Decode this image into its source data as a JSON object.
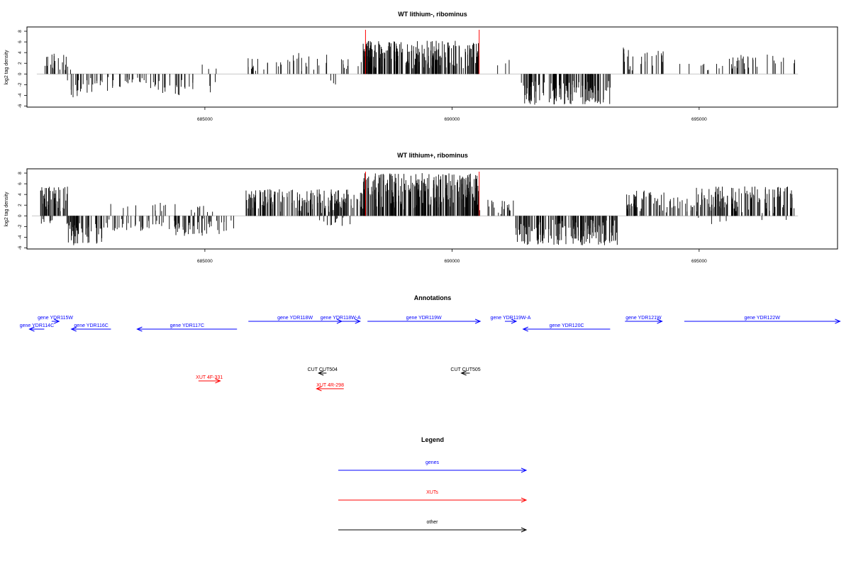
{
  "colors": {
    "gene": "#0000ff",
    "xut": "#ff0000",
    "other": "#000000",
    "highlight": "#ff0000",
    "baseline": "#c0c0c0"
  },
  "chart_data": [
    {
      "type": "bar",
      "title": "WT lithium-, ribominus",
      "xlabel": "",
      "ylabel": "log2 tag density",
      "xlim": [
        681400,
        697800
      ],
      "ylim": [
        -6.2,
        8.8
      ],
      "xticks": [
        685000,
        690000,
        695000
      ],
      "xtick_labels": [
        "685000",
        "690000",
        "695000"
      ],
      "yticks": [
        8,
        6,
        4,
        2,
        0,
        -2,
        -4,
        -6
      ],
      "ytick_labels": [
        "8",
        "6",
        "4",
        "2",
        "0",
        "-2",
        "-4",
        "-6"
      ],
      "highlight_x": [
        688250,
        690550
      ],
      "segments": [
        {
          "start": 681750,
          "end": 682300,
          "sign": 1,
          "min": 0.5,
          "max": 4.0,
          "density": 0.55,
          "seed": 11
        },
        {
          "start": 682200,
          "end": 682750,
          "sign": -1,
          "min": 0.5,
          "max": 4.5,
          "density": 0.5,
          "seed": 12
        },
        {
          "start": 682750,
          "end": 683300,
          "sign": -1,
          "min": 0.5,
          "max": 3.5,
          "density": 0.35,
          "seed": 13
        },
        {
          "start": 683300,
          "end": 683900,
          "sign": -1,
          "min": 0.5,
          "max": 2.5,
          "density": 0.3,
          "seed": 14
        },
        {
          "start": 683900,
          "end": 684550,
          "sign": -1,
          "min": 0.5,
          "max": 4.0,
          "density": 0.45,
          "seed": 15
        },
        {
          "start": 684550,
          "end": 685400,
          "sign": -1,
          "min": 0.5,
          "max": 3.5,
          "density": 0.15,
          "seed": 16
        },
        {
          "start": 684800,
          "end": 685400,
          "sign": 1,
          "min": 0.3,
          "max": 2.0,
          "density": 0.06,
          "seed": 17
        },
        {
          "start": 685850,
          "end": 686750,
          "sign": 1,
          "min": 0.5,
          "max": 3.0,
          "density": 0.3,
          "seed": 18
        },
        {
          "start": 686750,
          "end": 687600,
          "sign": 1,
          "min": 0.5,
          "max": 4.0,
          "density": 0.25,
          "seed": 19
        },
        {
          "start": 687500,
          "end": 687700,
          "sign": -1,
          "min": 1.0,
          "max": 2.5,
          "density": 0.2,
          "seed": 20
        },
        {
          "start": 687700,
          "end": 688200,
          "sign": 1,
          "min": 0.5,
          "max": 3.0,
          "density": 0.25,
          "seed": 21
        },
        {
          "start": 688200,
          "end": 690550,
          "sign": 1,
          "min": 1.0,
          "max": 6.2,
          "density": 1.3,
          "seed": 22
        },
        {
          "start": 690800,
          "end": 691300,
          "sign": 1,
          "min": 0.5,
          "max": 3.0,
          "density": 0.08,
          "seed": 23
        },
        {
          "start": 691400,
          "end": 693200,
          "sign": -1,
          "min": 1.0,
          "max": 5.8,
          "density": 1.0,
          "seed": 24
        },
        {
          "start": 693450,
          "end": 694300,
          "sign": 1,
          "min": 0.5,
          "max": 5.0,
          "density": 0.4,
          "seed": 25
        },
        {
          "start": 694600,
          "end": 695400,
          "sign": 1,
          "min": 0.5,
          "max": 2.5,
          "density": 0.15,
          "seed": 26
        },
        {
          "start": 695400,
          "end": 696950,
          "sign": 1,
          "min": 0.5,
          "max": 3.8,
          "density": 0.3,
          "seed": 27
        }
      ]
    },
    {
      "type": "bar",
      "title": "WT lithium+, ribominus",
      "xlabel": "",
      "ylabel": "log2 tag density",
      "xlim": [
        681400,
        697800
      ],
      "ylim": [
        -6.2,
        8.8
      ],
      "xticks": [
        685000,
        690000,
        695000
      ],
      "xtick_labels": [
        "685000",
        "690000",
        "695000"
      ],
      "yticks": [
        8,
        6,
        4,
        2,
        0,
        -2,
        -4,
        -6
      ],
      "ytick_labels": [
        "8",
        "6",
        "4",
        "2",
        "0",
        "-2",
        "-4",
        "-6"
      ],
      "highlight_x": [
        688250,
        690550
      ],
      "segments": [
        {
          "start": 681650,
          "end": 682250,
          "sign": 1,
          "min": 0.5,
          "max": 5.5,
          "density": 1.0,
          "seed": 31
        },
        {
          "start": 681650,
          "end": 681950,
          "sign": -1,
          "min": 0.3,
          "max": 1.5,
          "density": 0.4,
          "seed": 32
        },
        {
          "start": 682200,
          "end": 683000,
          "sign": -1,
          "min": 0.5,
          "max": 5.5,
          "density": 0.9,
          "seed": 33
        },
        {
          "start": 683000,
          "end": 684400,
          "sign": -1,
          "min": 0.5,
          "max": 2.8,
          "density": 0.4,
          "seed": 34
        },
        {
          "start": 683000,
          "end": 684400,
          "sign": 1,
          "min": 0.3,
          "max": 2.5,
          "density": 0.12,
          "seed": 35
        },
        {
          "start": 684400,
          "end": 685600,
          "sign": -1,
          "min": 0.5,
          "max": 3.8,
          "density": 0.55,
          "seed": 36
        },
        {
          "start": 684700,
          "end": 685300,
          "sign": 1,
          "min": 0.5,
          "max": 2.2,
          "density": 0.2,
          "seed": 37
        },
        {
          "start": 685800,
          "end": 688200,
          "sign": 1,
          "min": 0.5,
          "max": 5.0,
          "density": 1.0,
          "seed": 38
        },
        {
          "start": 687300,
          "end": 688000,
          "sign": -1,
          "min": 0.3,
          "max": 2.0,
          "density": 0.25,
          "seed": 39
        },
        {
          "start": 688200,
          "end": 690550,
          "sign": 1,
          "min": 1.0,
          "max": 8.0,
          "density": 1.5,
          "seed": 40
        },
        {
          "start": 690550,
          "end": 691250,
          "sign": 1,
          "min": 0.3,
          "max": 3.0,
          "density": 0.4,
          "seed": 41
        },
        {
          "start": 691250,
          "end": 693350,
          "sign": -1,
          "min": 0.5,
          "max": 5.5,
          "density": 1.1,
          "seed": 42
        },
        {
          "start": 693500,
          "end": 694300,
          "sign": 1,
          "min": 0.5,
          "max": 4.8,
          "density": 0.8,
          "seed": 43
        },
        {
          "start": 694300,
          "end": 694900,
          "sign": 1,
          "min": 0.5,
          "max": 3.5,
          "density": 0.45,
          "seed": 44
        },
        {
          "start": 694900,
          "end": 696950,
          "sign": 1,
          "min": 0.5,
          "max": 5.5,
          "density": 0.9,
          "seed": 45
        },
        {
          "start": 694900,
          "end": 696950,
          "sign": -1,
          "min": 0.3,
          "max": 1.8,
          "density": 0.04,
          "seed": 46
        }
      ]
    }
  ],
  "annotations": {
    "title": "Annotations",
    "genes": [
      {
        "label": "gene YDR115W",
        "start": 681900,
        "end": 682050,
        "strand": "+",
        "row": 0
      },
      {
        "label": "gene YDR114C",
        "start": 681450,
        "end": 681750,
        "strand": "-",
        "row": 1
      },
      {
        "label": "gene YDR116C",
        "start": 682300,
        "end": 683100,
        "strand": "-",
        "row": 1
      },
      {
        "label": "gene YDR117C",
        "start": 683630,
        "end": 685650,
        "strand": "-",
        "row": 1
      },
      {
        "label": "gene YDR118W",
        "start": 685880,
        "end": 687770,
        "strand": "+",
        "row": 0
      },
      {
        "label": "gene YDR118W-A",
        "start": 687350,
        "end": 688140,
        "strand": "+",
        "row": 0
      },
      {
        "label": "gene YDR119W",
        "start": 688290,
        "end": 690570,
        "strand": "+",
        "row": 0
      },
      {
        "label": "gene YDR119W-A",
        "start": 691070,
        "end": 691300,
        "strand": "+",
        "row": 0
      },
      {
        "label": "gene YDR120C",
        "start": 691440,
        "end": 693200,
        "strand": "-",
        "row": 1
      },
      {
        "label": "gene YDR121W",
        "start": 693500,
        "end": 694250,
        "strand": "+",
        "row": 0
      },
      {
        "label": "gene YDR122W",
        "start": 694700,
        "end": 697850,
        "strand": "+",
        "row": 0
      }
    ],
    "cuts": [
      {
        "label": "CUT CUT504",
        "start": 687300,
        "end": 687460,
        "strand": "-",
        "row": 0
      },
      {
        "label": "CUT CUT505",
        "start": 690190,
        "end": 690360,
        "strand": "-",
        "row": 0
      }
    ],
    "xuts": [
      {
        "label": "XUT 4F-331",
        "start": 684870,
        "end": 685310,
        "strand": "+",
        "row": 0
      },
      {
        "label": "XUT 4R-298",
        "start": 687260,
        "end": 687810,
        "strand": "-",
        "row": 1
      }
    ]
  },
  "legend": {
    "title": "Legend",
    "items": [
      {
        "label": "genes",
        "color": "#0000ff"
      },
      {
        "label": "XUTs",
        "color": "#ff0000"
      },
      {
        "label": "other",
        "color": "#000000"
      }
    ]
  }
}
